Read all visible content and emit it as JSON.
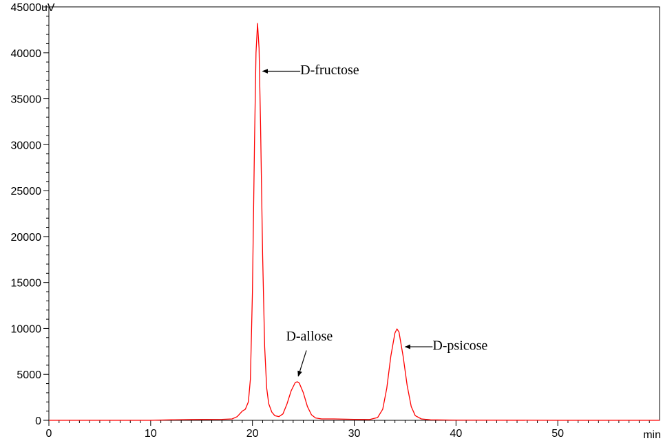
{
  "chart_data": {
    "type": "line",
    "x_unit": "min",
    "y_unit": "uV",
    "xlim": [
      0,
      60
    ],
    "ylim": [
      0,
      45000
    ],
    "x_ticks": [
      0,
      10,
      20,
      30,
      40,
      50
    ],
    "y_ticks": [
      0,
      5000,
      10000,
      15000,
      20000,
      25000,
      30000,
      35000,
      40000,
      45000
    ],
    "grid": false,
    "series": [
      {
        "color": "#ff0000",
        "points": [
          [
            0,
            0
          ],
          [
            3,
            0
          ],
          [
            3.05,
            0
          ],
          [
            10,
            0
          ],
          [
            12,
            50
          ],
          [
            14,
            80
          ],
          [
            17,
            100
          ],
          [
            18,
            150
          ],
          [
            18.5,
            400
          ],
          [
            19,
            1000
          ],
          [
            19.3,
            1200
          ],
          [
            19.6,
            2000
          ],
          [
            19.8,
            4500
          ],
          [
            20.0,
            14000
          ],
          [
            20.2,
            30000
          ],
          [
            20.35,
            40000
          ],
          [
            20.5,
            43200
          ],
          [
            20.65,
            40500
          ],
          [
            20.8,
            32000
          ],
          [
            21.0,
            18000
          ],
          [
            21.2,
            8000
          ],
          [
            21.4,
            3500
          ],
          [
            21.6,
            1800
          ],
          [
            21.9,
            900
          ],
          [
            22.2,
            500
          ],
          [
            22.6,
            400
          ],
          [
            23.0,
            700
          ],
          [
            23.4,
            1800
          ],
          [
            23.8,
            3200
          ],
          [
            24.2,
            4100
          ],
          [
            24.4,
            4200
          ],
          [
            24.6,
            4050
          ],
          [
            25.0,
            3000
          ],
          [
            25.4,
            1500
          ],
          [
            25.8,
            600
          ],
          [
            26.2,
            250
          ],
          [
            26.8,
            150
          ],
          [
            28,
            150
          ],
          [
            30,
            100
          ],
          [
            31.5,
            80
          ],
          [
            32.3,
            300
          ],
          [
            32.8,
            1200
          ],
          [
            33.2,
            3500
          ],
          [
            33.6,
            7000
          ],
          [
            34.0,
            9500
          ],
          [
            34.2,
            9950
          ],
          [
            34.4,
            9600
          ],
          [
            34.8,
            7000
          ],
          [
            35.2,
            3800
          ],
          [
            35.6,
            1500
          ],
          [
            36.0,
            500
          ],
          [
            36.6,
            150
          ],
          [
            37.5,
            50
          ],
          [
            40,
            20
          ],
          [
            50,
            0
          ],
          [
            60,
            0
          ]
        ]
      }
    ],
    "annotations": [
      {
        "text": "D-fructose",
        "text_x": 24.7,
        "text_y": 38200,
        "arrow_from": [
          24.7,
          38000
        ],
        "arrow_to": [
          21.0,
          38000
        ]
      },
      {
        "text": "D-allose",
        "text_x": 23.3,
        "text_y": 9200,
        "arrow_from": [
          25.3,
          7600
        ],
        "arrow_to": [
          24.5,
          4800
        ]
      },
      {
        "text": "D-psicose",
        "text_x": 37.7,
        "text_y": 8200,
        "arrow_from": [
          37.7,
          8000
        ],
        "arrow_to": [
          35.0,
          8000
        ]
      }
    ]
  }
}
